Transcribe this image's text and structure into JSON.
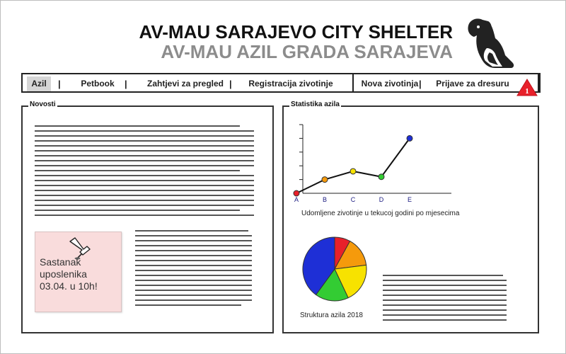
{
  "header": {
    "title_en": "AV-MAU SARAJEVO CITY SHELTER",
    "title_local": "AV-MAU AZIL GRADA SARAJEVA",
    "logo_icon": "dog-cat-silhouette-icon"
  },
  "nav": {
    "items": [
      {
        "label": "Azil",
        "active": true
      },
      {
        "label": "Petbook"
      },
      {
        "label": "Zahtjevi za pregled"
      },
      {
        "label": "Registracija zivotinje"
      },
      {
        "label": "Nova zivotinja"
      },
      {
        "label": "Prijave za dresuru"
      }
    ],
    "separator": "|",
    "notification_count": "1",
    "notification_color": "#e8202a"
  },
  "news": {
    "label": "Novosti",
    "sticky_note": "Sastanak\nuposlenika\n03.04. u 10h!",
    "sticky_color": "#f9dcdc",
    "pin_icon": "pushpin-icon"
  },
  "stats": {
    "label": "Statistika azila",
    "line_caption": "Udomljene zivotinje u tekucoj godini po mjesecima",
    "pie_caption": "Struktura azila 2018"
  },
  "chart_data": [
    {
      "type": "line",
      "categories": [
        "A",
        "B",
        "C",
        "D",
        "E"
      ],
      "values": [
        0,
        1,
        1.6,
        1.2,
        4
      ],
      "ylim": [
        0,
        5
      ],
      "point_colors": [
        "#e8202a",
        "#f59a0c",
        "#f7e200",
        "#33cc33",
        "#1e2fd6"
      ],
      "title": "",
      "xlabel": "",
      "ylabel": ""
    },
    {
      "type": "pie",
      "slices": [
        {
          "value": 8,
          "color": "#e8202a"
        },
        {
          "value": 15,
          "color": "#f59a0c"
        },
        {
          "value": 20,
          "color": "#f7e200"
        },
        {
          "value": 17,
          "color": "#33cc33"
        },
        {
          "value": 40,
          "color": "#1e2fd6"
        }
      ],
      "title": "Struktura azila 2018"
    }
  ]
}
